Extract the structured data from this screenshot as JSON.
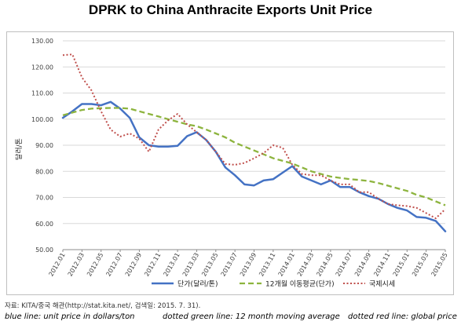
{
  "chart_data": {
    "type": "line",
    "title": "DPRK to China Anthracite Exports Unit Price",
    "xlabel": "",
    "ylabel": "달러/톤",
    "ylim": [
      50,
      130
    ],
    "yticks": [
      "50.00",
      "60.00",
      "70.00",
      "80.00",
      "90.00",
      "100.00",
      "110.00",
      "120.00",
      "130.00"
    ],
    "x_tick_labels": [
      "2012.01",
      "2012.03",
      "2012.05",
      "2012.07",
      "2012.09",
      "2012.11",
      "2013.01",
      "2013.03",
      "2013.05",
      "2013.07",
      "2013.09",
      "2013.11",
      "2014.01",
      "2014.03",
      "2014.05",
      "2014.07",
      "2014.09",
      "2014.11",
      "2015.01",
      "2015.03",
      "2015.05"
    ],
    "x": [
      "2012.01",
      "2012.02",
      "2012.03",
      "2012.04",
      "2012.05",
      "2012.06",
      "2012.07",
      "2012.08",
      "2012.09",
      "2012.10",
      "2012.11",
      "2012.12",
      "2013.01",
      "2013.02",
      "2013.03",
      "2013.04",
      "2013.05",
      "2013.06",
      "2013.07",
      "2013.08",
      "2013.09",
      "2013.10",
      "2013.11",
      "2013.12",
      "2014.01",
      "2014.02",
      "2014.03",
      "2014.04",
      "2014.05",
      "2014.06",
      "2014.07",
      "2014.08",
      "2014.09",
      "2014.10",
      "2014.11",
      "2014.12",
      "2015.01",
      "2015.02",
      "2015.03",
      "2015.04",
      "2015.05"
    ],
    "grid": true,
    "legend_position": "bottom",
    "series": [
      {
        "name": "단가(달러/톤)",
        "style": "solid",
        "color": "#4472c4",
        "values": [
          100.5,
          103,
          105.8,
          105.8,
          105.3,
          106.6,
          104,
          100.5,
          93,
          90,
          89.5,
          89.5,
          89.8,
          93.5,
          95,
          92,
          87.5,
          81.5,
          78.5,
          75,
          74.6,
          76.5,
          77,
          79.5,
          82,
          78,
          76.5,
          75,
          76.5,
          74,
          74,
          72,
          70.5,
          69.5,
          67.5,
          66,
          65,
          62.5,
          62.2,
          61,
          57
        ]
      },
      {
        "name": "12개월 이동평균(단가)",
        "style": "dashed",
        "color": "#8db43e",
        "values": [
          101.5,
          102.5,
          103.5,
          104,
          104.2,
          104.3,
          104.3,
          104,
          103,
          102,
          101,
          100,
          99,
          98,
          97.3,
          96,
          94.5,
          93,
          91,
          89.5,
          88,
          86.5,
          85,
          84,
          83,
          81.5,
          80,
          79,
          78,
          77.5,
          77,
          76.7,
          76.3,
          75.5,
          74.5,
          73.5,
          72.5,
          71,
          70,
          68.5,
          67
        ]
      },
      {
        "name": "국제시세",
        "style": "dotted",
        "color": "#c0504d",
        "values": [
          124.5,
          124.8,
          116,
          111,
          103,
          96,
          93.3,
          94.5,
          92.5,
          87.5,
          96,
          99.5,
          102,
          98,
          95,
          92,
          87.5,
          82.8,
          82.5,
          83.2,
          85,
          87,
          90,
          89,
          82.5,
          79,
          78.5,
          78.5,
          76.5,
          75,
          75,
          72,
          72,
          69.5,
          67.5,
          67,
          66.7,
          66,
          64,
          62,
          65.5
        ]
      }
    ]
  },
  "source_note": "자료: KITA/중국 해관(http://stat.kita.net/, 검색일: 2015. 7. 31).",
  "caption": {
    "blue": "blue line: unit price in dollars/ton",
    "green": "dotted green line: 12 month moving average",
    "red": "dotted red line: global price"
  }
}
